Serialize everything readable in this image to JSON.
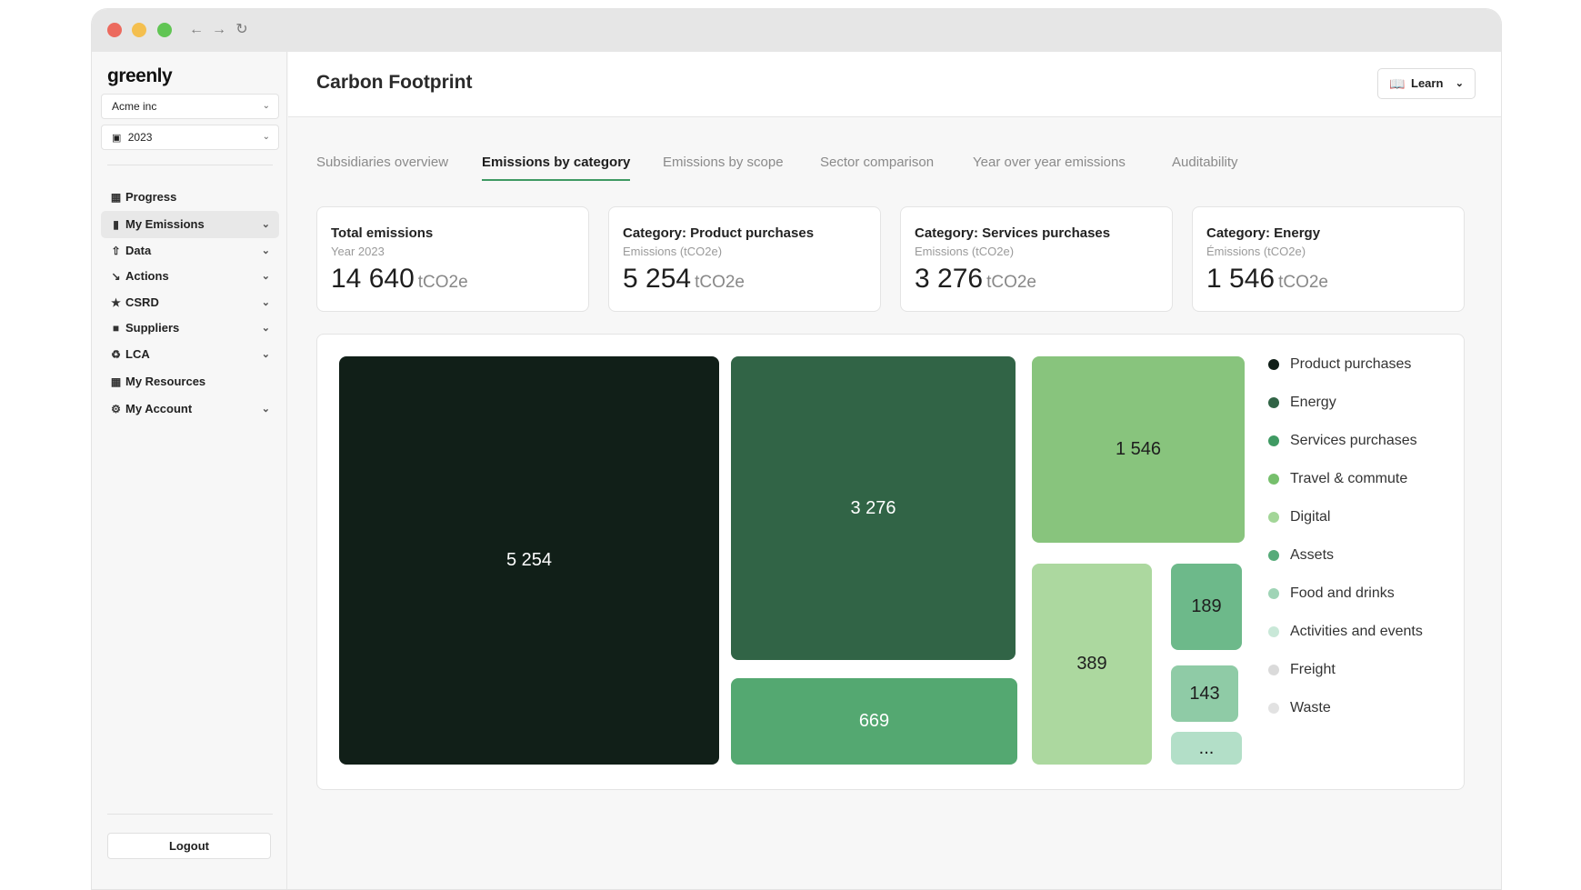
{
  "sidebar": {
    "logo": "greenly",
    "company_select": "Acme inc",
    "year_select": "2023",
    "items": [
      {
        "label": "Progress",
        "icon": "grid-icon"
      },
      {
        "label": "My Emissions",
        "icon": "bar-chart-icon",
        "active": true
      },
      {
        "label": "Data",
        "icon": "upload-icon"
      },
      {
        "label": "Actions",
        "icon": "trend-down-icon"
      },
      {
        "label": "CSRD",
        "icon": "star-icon"
      },
      {
        "label": "Suppliers",
        "icon": "folder-icon"
      },
      {
        "label": "LCA",
        "icon": "recycle-icon"
      },
      {
        "label": "My Resources",
        "icon": "grid-icon"
      },
      {
        "label": "My Account",
        "icon": "gear-icon"
      }
    ],
    "logout": "Logout"
  },
  "header": {
    "title": "Carbon Footprint",
    "learn_label": "Learn"
  },
  "tabs": [
    {
      "label": "Subsidiaries overview"
    },
    {
      "label": "Emissions by category",
      "active": true
    },
    {
      "label": "Emissions by scope"
    },
    {
      "label": "Sector comparison"
    },
    {
      "label": "Year over year emissions"
    },
    {
      "label": "Auditability"
    }
  ],
  "cards": [
    {
      "title": "Total emissions",
      "subtitle": "Year 2023",
      "value": "14 640",
      "unit": "tCO2e"
    },
    {
      "title": "Category: Product purchases",
      "subtitle": "Emissions (tCO2e)",
      "value": "5 254",
      "unit": "tCO2e"
    },
    {
      "title": "Category: Services purchases",
      "subtitle": "Emissions (tCO2e)",
      "value": "3 276",
      "unit": "tCO2e"
    },
    {
      "title": "Category: Energy",
      "subtitle": "Émissions (tCO2e)",
      "value": "1 546",
      "unit": "tCO2e"
    }
  ],
  "chart_data": {
    "type": "treemap",
    "unit": "tCO2e",
    "tiles": [
      {
        "label": "5 254",
        "value": 5254,
        "color": "#111f18",
        "text_color": "#ffffff"
      },
      {
        "label": "3 276",
        "value": 3276,
        "color": "#316446",
        "text_color": "#ffffff"
      },
      {
        "label": "669",
        "value": 669,
        "color": "#54a871",
        "text_color": "#ffffff"
      },
      {
        "label": "1 546",
        "value": 1546,
        "color": "#88c47d",
        "text_color": "#1e1e1e"
      },
      {
        "label": "389",
        "value": 389,
        "color": "#acd89f",
        "text_color": "#1e1e1e"
      },
      {
        "label": "189",
        "value": 189,
        "color": "#6db98a",
        "text_color": "#1e1e1e"
      },
      {
        "label": "143",
        "value": 143,
        "color": "#8fcba6",
        "text_color": "#1e1e1e"
      },
      {
        "label": "...",
        "color": "#b3dfc8",
        "text_color": "#1e1e1e"
      }
    ],
    "legend": [
      {
        "name": "Product purchases",
        "color": "#111f18"
      },
      {
        "name": "Energy",
        "color": "#316446"
      },
      {
        "name": "Services purchases",
        "color": "#3f9a63"
      },
      {
        "name": "Travel & commute",
        "color": "#76bf6c"
      },
      {
        "name": "Digital",
        "color": "#a3d698"
      },
      {
        "name": "Assets",
        "color": "#56ab79"
      },
      {
        "name": "Food and drinks",
        "color": "#9fd4b6"
      },
      {
        "name": "Activities and events",
        "color": "#c9e8d8"
      },
      {
        "name": "Freight",
        "color": "#dadada"
      },
      {
        "name": "Waste",
        "color": "#e2e2e2"
      }
    ]
  }
}
